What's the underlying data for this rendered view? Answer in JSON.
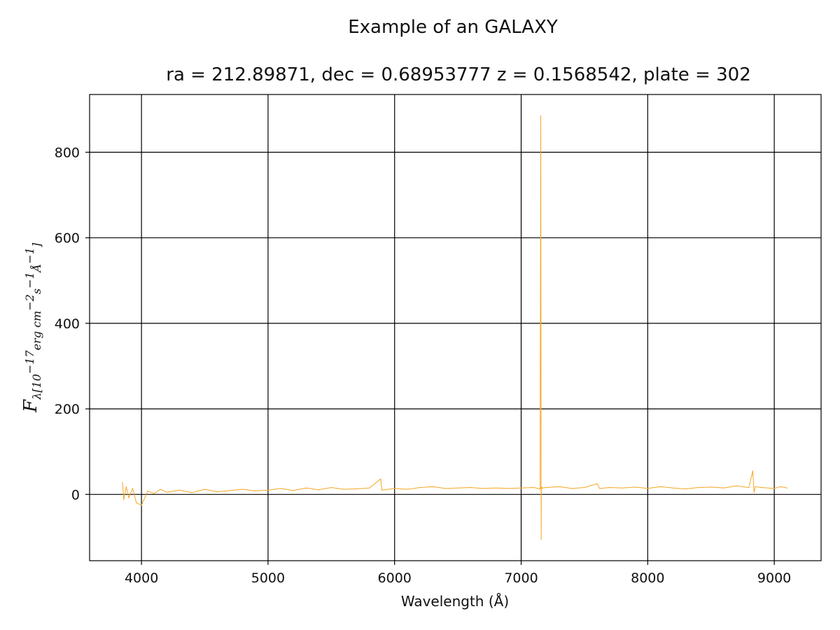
{
  "chart_data": {
    "type": "line",
    "title": "Example of an GALAXY",
    "subtitle": "ra = 212.89871, dec = 0.68953777 z = 0.1568542, plate = 302",
    "xlabel": "Wavelength (Å)",
    "ylabel": {
      "symbol": "F",
      "subscript": "λ[10",
      "exp1": "−17",
      "mid": "erg cm",
      "exp2": "−2",
      "s": "s",
      "exp3": "−1",
      "unit": "Å",
      "exp4": "−1",
      "close": "]"
    },
    "xlim": [
      3590,
      9370
    ],
    "ylim": [
      -155,
      935
    ],
    "xticks": [
      4000,
      5000,
      6000,
      7000,
      8000,
      9000
    ],
    "yticks": [
      0,
      200,
      400,
      600,
      800
    ],
    "xtick_labels": [
      "4000",
      "5000",
      "6000",
      "7000",
      "8000",
      "9000"
    ],
    "ytick_labels": [
      "0",
      "200",
      "400",
      "600",
      "800"
    ],
    "grid": true,
    "series_color": "#f5a623",
    "series": [
      {
        "x": [
          3850,
          3860,
          3880,
          3900,
          3930,
          3960,
          4000,
          4050,
          4100,
          4150,
          4200,
          4300,
          4400,
          4500,
          4600,
          4700,
          4800,
          4900,
          5000,
          5100,
          5200,
          5300,
          5400,
          5500,
          5600,
          5700,
          5800,
          5890,
          5900,
          5950,
          6000,
          6100,
          6200,
          6300,
          6400,
          6500,
          6600,
          6700,
          6800,
          6900,
          7000,
          7100,
          7150,
          7155,
          7158,
          7160,
          7163,
          7166,
          7170,
          7200,
          7300,
          7400,
          7500,
          7600,
          7620,
          7700,
          7800,
          7900,
          8000,
          8100,
          8200,
          8300,
          8400,
          8500,
          8600,
          8700,
          8800,
          8830,
          8840,
          8850,
          8900,
          9000,
          9050,
          9100
        ],
        "y": [
          28,
          -12,
          18,
          -8,
          14,
          -20,
          -25,
          8,
          2,
          12,
          5,
          10,
          4,
          12,
          6,
          9,
          12,
          8,
          10,
          14,
          9,
          15,
          11,
          16,
          12,
          13,
          15,
          36,
          10,
          12,
          14,
          12,
          16,
          18,
          14,
          15,
          16,
          14,
          15,
          14,
          15,
          16,
          13,
          885,
          -105,
          18,
          14,
          16,
          15,
          16,
          18,
          14,
          16,
          25,
          14,
          16,
          15,
          17,
          14,
          18,
          15,
          13,
          16,
          17,
          15,
          20,
          16,
          55,
          5,
          18,
          16,
          14,
          18,
          15
        ]
      }
    ]
  }
}
